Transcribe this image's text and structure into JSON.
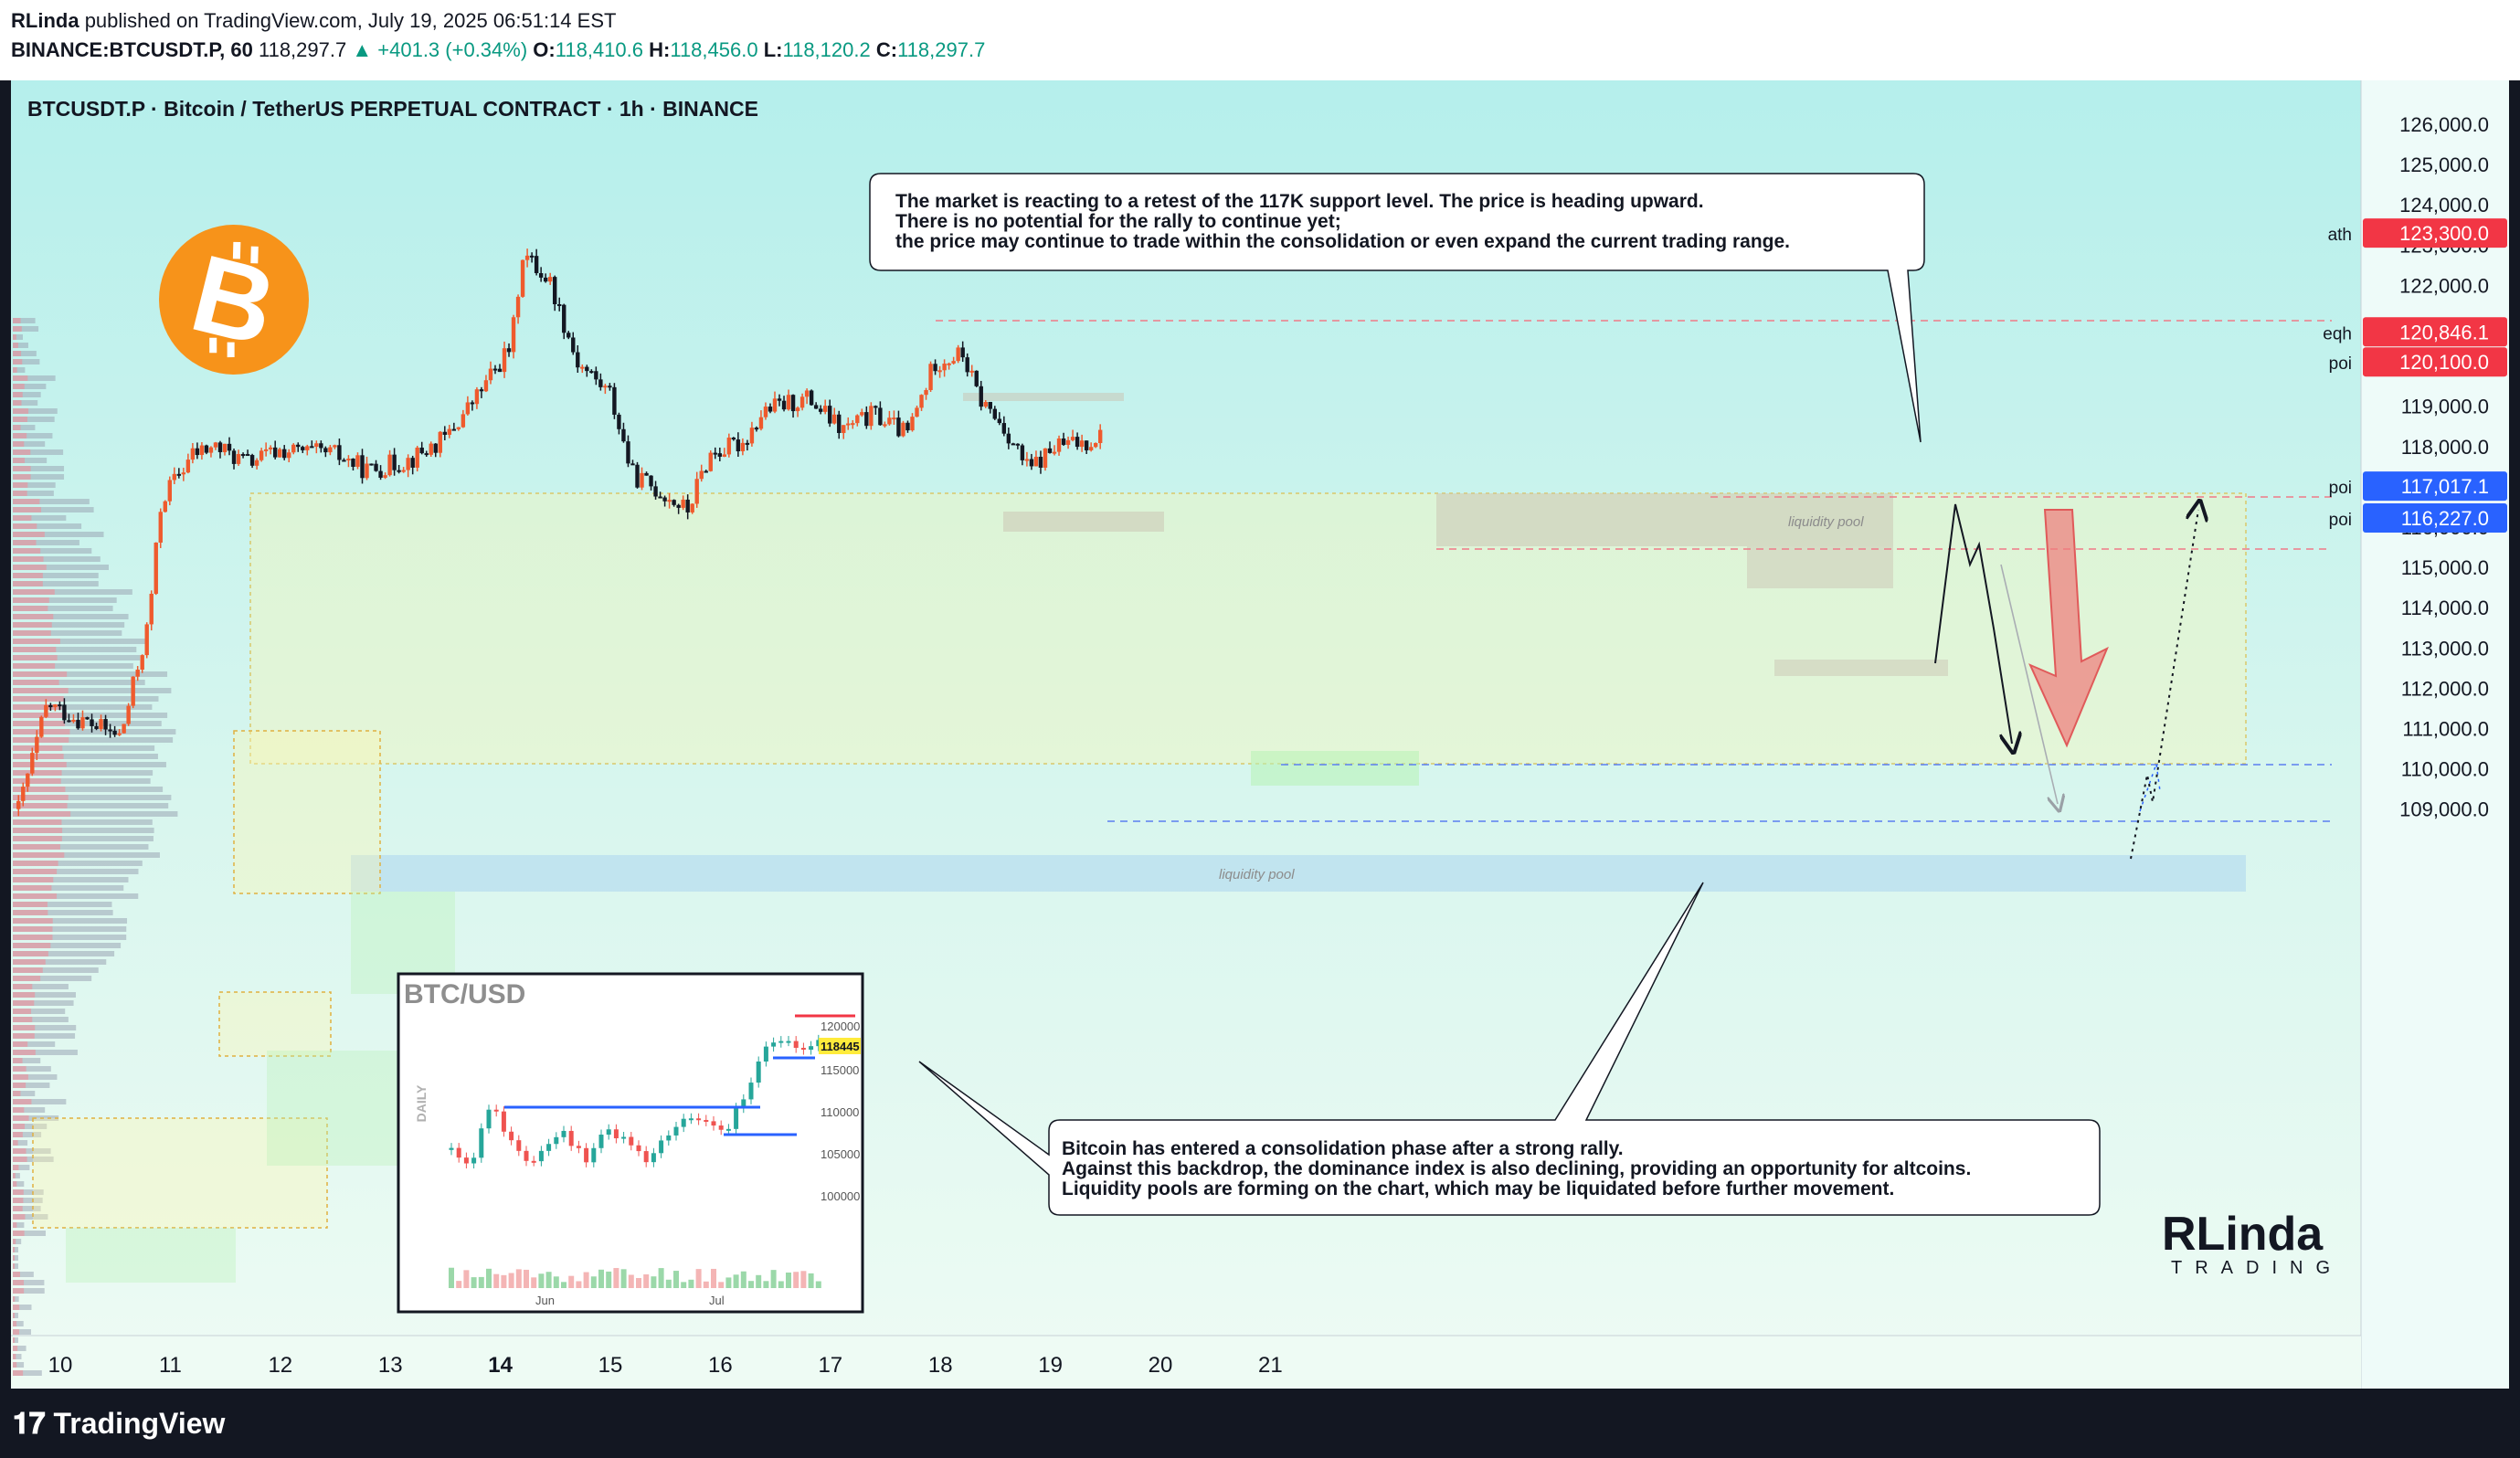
{
  "header": {
    "author": "RLinda",
    "published_text": "published on TradingView.com, July 19, 2025 06:51:14 EST",
    "symbol_line": "BINANCE:BTCUSDT.P, 60",
    "last_price": "118,297.7",
    "change": "+401.3 (+0.34%)",
    "open_label": "O:",
    "open": "118,410.6",
    "high_label": "H:",
    "high": "118,456.0",
    "low_label": "L:",
    "low": "118,120.2",
    "close_label": "C:",
    "close": "118,297.7"
  },
  "chart_title": "BTCUSDT.P · Bitcoin / TetherUS PERPETUAL CONTRACT · 1h · BINANCE",
  "annotations": {
    "top_box": [
      "The market is reacting to a retest of the 117K support level. The price is heading upward.",
      "There is no potential for the rally to continue yet;",
      "the price may continue to trade within the consolidation or even expand the current trading range."
    ],
    "bottom_box": [
      "Bitcoin has entered a consolidation phase after a strong rally.",
      "Against this backdrop, the dominance index is also declining, providing an opportunity for altcoins.",
      "Liquidity pools are forming on the chart, which may be liquidated before further movement."
    ],
    "liquidity_pool_upper": "liquidity pool",
    "liquidity_pool_lower": "liquidity pool"
  },
  "levels": [
    {
      "name": "ath",
      "value": "123,300.0",
      "color": "#f23645"
    },
    {
      "name": "eqh",
      "value": "120,846.1",
      "color": "#f23645"
    },
    {
      "name": "poi",
      "value": "120,100.0",
      "color": "#f23645"
    },
    {
      "name": "poi",
      "value": "117,017.1",
      "color": "#2962ff"
    },
    {
      "name": "poi",
      "value": "116,227.0",
      "color": "#2962ff"
    }
  ],
  "inset": {
    "title": "BTC/USD",
    "timeframe": "DAILY",
    "x_ticks": [
      "Jun",
      "Jul"
    ],
    "y_ticks": [
      "120000",
      "115000",
      "110000",
      "105000",
      "100000"
    ],
    "price_tag": "118445"
  },
  "watermark": {
    "brand": "RLinda",
    "sub": "TRADING"
  },
  "footer": {
    "brand": "TradingView"
  },
  "chart_data": {
    "type": "candlestick",
    "title": "BTCUSDT.P · Bitcoin / TetherUS PERPETUAL CONTRACT · 1h · BINANCE",
    "x_ticks": [
      "10",
      "11",
      "12",
      "13",
      "14",
      "15",
      "16",
      "17",
      "18",
      "19",
      "20",
      "21"
    ],
    "y_ticks": [
      "126,000.0",
      "125,000.0",
      "124,000.0",
      "123,000.0",
      "122,000.0",
      "121,000.0",
      "120,000.0",
      "119,000.0",
      "118,000.0",
      "117,000.0",
      "116,000.0",
      "115,000.0",
      "114,000.0",
      "113,000.0",
      "112,000.0",
      "111,000.0",
      "110,000.0",
      "109,000.0"
    ],
    "ylim": [
      108800,
      126600
    ],
    "up_color": "#ef5a2d",
    "down_color": "#131722",
    "series": [
      {
        "name": "BTCUSDT.P",
        "close_path": [
          {
            "day": 9.62,
            "price": 109000
          },
          {
            "day": 9.88,
            "price": 111600
          },
          {
            "day": 10.2,
            "price": 111200
          },
          {
            "day": 10.55,
            "price": 110800
          },
          {
            "day": 10.8,
            "price": 113600
          },
          {
            "day": 10.92,
            "price": 116700
          },
          {
            "day": 11.2,
            "price": 117800
          },
          {
            "day": 11.4,
            "price": 118000
          },
          {
            "day": 11.7,
            "price": 117600
          },
          {
            "day": 12.0,
            "price": 117900
          },
          {
            "day": 12.5,
            "price": 117800
          },
          {
            "day": 12.8,
            "price": 117400
          },
          {
            "day": 13.2,
            "price": 117700
          },
          {
            "day": 13.5,
            "price": 118200
          },
          {
            "day": 13.8,
            "price": 119300
          },
          {
            "day": 14.1,
            "price": 120500
          },
          {
            "day": 14.2,
            "price": 122800
          },
          {
            "day": 14.45,
            "price": 122100
          },
          {
            "day": 14.7,
            "price": 120100
          },
          {
            "day": 15.0,
            "price": 119300
          },
          {
            "day": 15.2,
            "price": 117300
          },
          {
            "day": 15.5,
            "price": 116800
          },
          {
            "day": 15.7,
            "price": 116400
          },
          {
            "day": 15.9,
            "price": 117800
          },
          {
            "day": 16.2,
            "price": 118100
          },
          {
            "day": 16.4,
            "price": 118900
          },
          {
            "day": 16.8,
            "price": 119200
          },
          {
            "day": 17.1,
            "price": 118400
          },
          {
            "day": 17.4,
            "price": 118800
          },
          {
            "day": 17.7,
            "price": 118300
          },
          {
            "day": 17.95,
            "price": 120100
          },
          {
            "day": 18.2,
            "price": 120300
          },
          {
            "day": 18.35,
            "price": 119200
          },
          {
            "day": 18.6,
            "price": 118400
          },
          {
            "day": 18.8,
            "price": 117400
          },
          {
            "day": 19.05,
            "price": 118000
          },
          {
            "day": 19.3,
            "price": 118100
          },
          {
            "day": 19.47,
            "price": 118300
          }
        ]
      }
    ],
    "projections": [
      {
        "name": "scenario-a",
        "path": [
          {
            "day": 19.47,
            "price": 118300
          },
          {
            "day": 19.55,
            "price": 120700
          },
          {
            "day": 19.7,
            "price": 120000
          },
          {
            "day": 19.88,
            "price": 117200
          }
        ]
      },
      {
        "name": "scenario-b",
        "path": [
          {
            "day": 20.0,
            "price": 117000
          },
          {
            "day": 20.3,
            "price": 115900
          },
          {
            "day": 20.75,
            "price": 120800
          }
        ]
      }
    ]
  }
}
